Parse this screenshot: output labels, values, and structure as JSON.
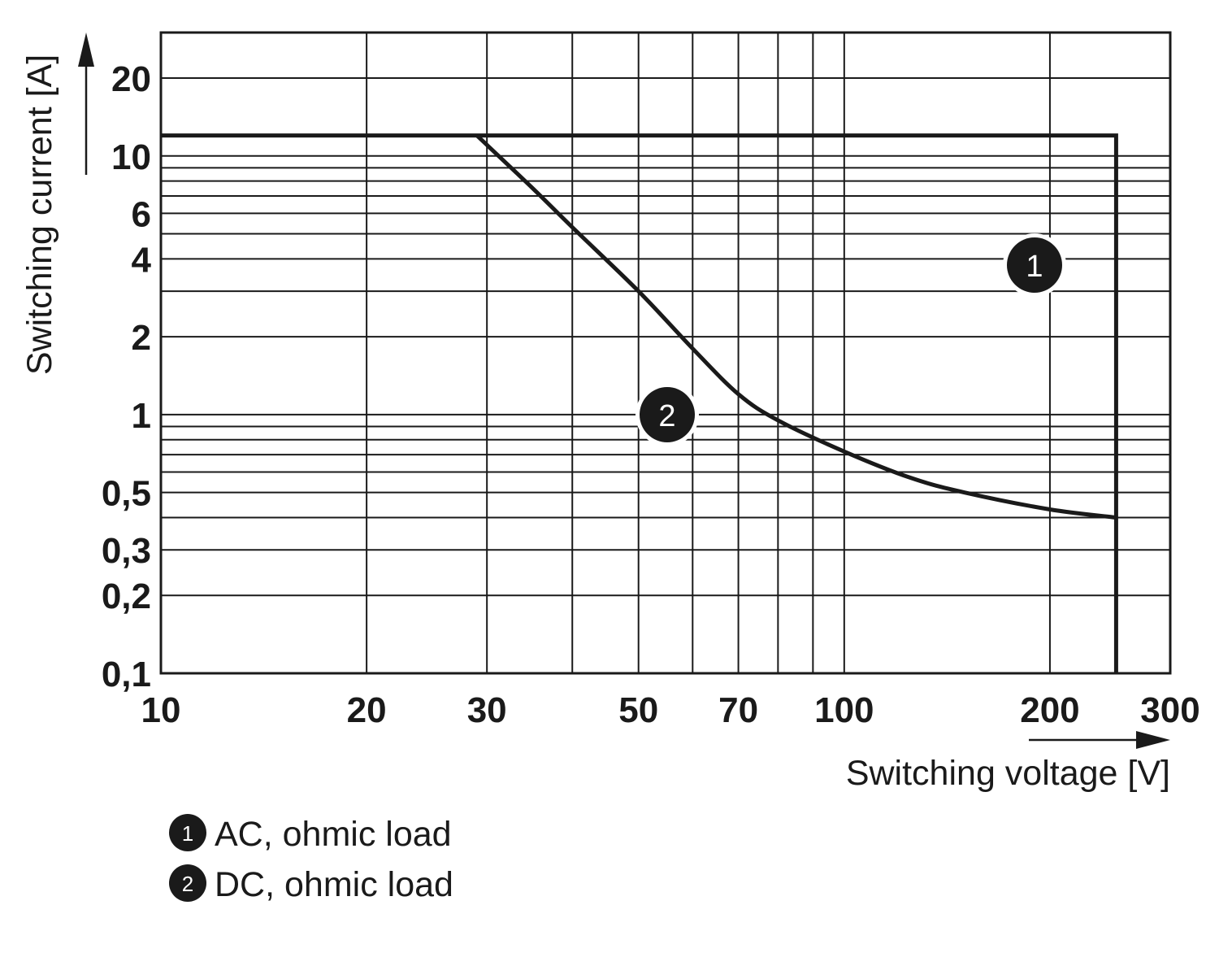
{
  "chart_data": {
    "type": "line",
    "xlabel": "Switching voltage [V]",
    "ylabel": "Switching current [A]",
    "x_scale": "log",
    "y_scale": "log",
    "xlim": [
      10,
      300
    ],
    "ylim": [
      0.1,
      30
    ],
    "x_ticks": [
      10,
      20,
      30,
      50,
      70,
      100,
      200,
      300
    ],
    "x_tick_labels": [
      "10",
      "20",
      "30",
      "50",
      "70",
      "100",
      "200",
      "300"
    ],
    "y_ticks": [
      0.1,
      0.2,
      0.3,
      0.5,
      1,
      2,
      4,
      6,
      10,
      20
    ],
    "y_tick_labels": [
      "0,1",
      "0,2",
      "0,3",
      "0,5",
      "1",
      "2",
      "4",
      "6",
      "10",
      "20"
    ],
    "grid": true,
    "series": [
      {
        "name": "AC, ohmic load",
        "marker": "1",
        "x": [
          10,
          250,
          250
        ],
        "y": [
          12,
          12,
          0.1
        ]
      },
      {
        "name": "DC, ohmic load",
        "marker": "2",
        "x": [
          29,
          35,
          40,
          50,
          60,
          70,
          80,
          100,
          125,
          150,
          200,
          250
        ],
        "y": [
          12,
          7.5,
          5.3,
          3.0,
          1.8,
          1.2,
          0.95,
          0.72,
          0.57,
          0.5,
          0.43,
          0.4
        ]
      }
    ]
  },
  "legend": [
    {
      "marker": "1",
      "label": "AC, ohmic load"
    },
    {
      "marker": "2",
      "label": "DC, ohmic load"
    }
  ]
}
